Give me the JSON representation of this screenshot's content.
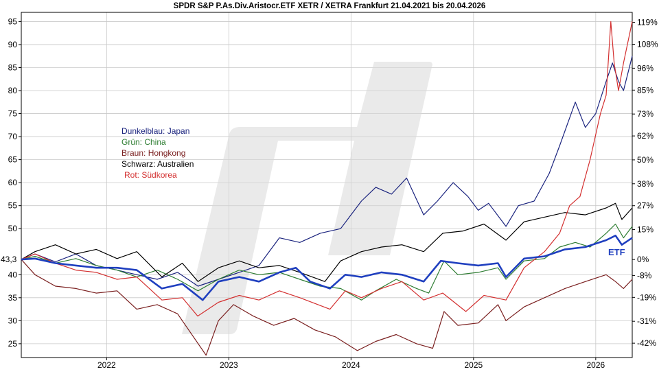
{
  "chart_data": {
    "type": "line",
    "title": "SPDR S&P P.As.Div.Aristocr.ETF XETR / XETRA Frankfurt 21.04.2021 bis 20.04.2026",
    "x_start": "2021-04-21",
    "x_end": "2026-04-20",
    "x_tick_labels": [
      "2022",
      "2023",
      "2024",
      "2025",
      "2026"
    ],
    "y_left_ticks": [
      25,
      30,
      35,
      40,
      50,
      55,
      60,
      65,
      70,
      75,
      80,
      85,
      90,
      95
    ],
    "y_left_base_label": "43,3",
    "y_left_base": 43.3,
    "y_right_ticks": [
      "119%",
      "108%",
      "96%",
      "85%",
      "73%",
      "62%",
      "50%",
      "38%",
      "27%",
      "15%",
      "0%",
      "-8%",
      "-19%",
      "-31%",
      "-42%"
    ],
    "ylim": [
      22,
      97
    ],
    "grid": true,
    "legend": [
      {
        "label": "Dunkelblau: Japan",
        "color": "#1a237e"
      },
      {
        "label": "Grün: China",
        "color": "#2e7d32"
      },
      {
        "label": "Braun: Hongkong",
        "color": "#7a1f1f"
      },
      {
        "label": "Schwarz: Australien",
        "color": "#000000"
      },
      {
        "label": "Rot: Südkorea",
        "color": "#d32f2f"
      }
    ],
    "annotation": {
      "text": "ETF",
      "color": "#1f3fbf"
    },
    "series": [
      {
        "key": "japan",
        "color": "#1a237e",
        "width": 1.2,
        "points": [
          [
            "2021-04-21",
            43.3
          ],
          [
            "2021-06-01",
            44.5
          ],
          [
            "2021-08-01",
            42.8
          ],
          [
            "2021-10-01",
            44.5
          ],
          [
            "2021-12-01",
            42.0
          ],
          [
            "2022-02-01",
            41.0
          ],
          [
            "2022-04-01",
            40.0
          ],
          [
            "2022-06-01",
            39.0
          ],
          [
            "2022-08-01",
            40.5
          ],
          [
            "2022-10-01",
            37.5
          ],
          [
            "2022-12-01",
            39.0
          ],
          [
            "2023-02-01",
            40.5
          ],
          [
            "2023-04-01",
            42.0
          ],
          [
            "2023-06-01",
            48.0
          ],
          [
            "2023-08-01",
            47.0
          ],
          [
            "2023-10-01",
            49.0
          ],
          [
            "2023-12-01",
            50.0
          ],
          [
            "2024-02-01",
            56.0
          ],
          [
            "2024-03-15",
            59.0
          ],
          [
            "2024-05-01",
            57.5
          ],
          [
            "2024-06-15",
            61.0
          ],
          [
            "2024-08-05",
            53.0
          ],
          [
            "2024-09-15",
            56.0
          ],
          [
            "2024-11-01",
            60.0
          ],
          [
            "2024-12-15",
            57.0
          ],
          [
            "2025-01-15",
            54.0
          ],
          [
            "2025-02-15",
            55.5
          ],
          [
            "2025-04-08",
            50.5
          ],
          [
            "2025-05-15",
            55.0
          ],
          [
            "2025-07-01",
            56.0
          ],
          [
            "2025-08-15",
            62.0
          ],
          [
            "2025-09-15",
            68.0
          ],
          [
            "2025-11-01",
            77.5
          ],
          [
            "2025-12-01",
            72.0
          ],
          [
            "2026-01-01",
            75.0
          ],
          [
            "2026-02-01",
            82.0
          ],
          [
            "2026-02-20",
            86.0
          ],
          [
            "2026-03-10",
            82.0
          ],
          [
            "2026-03-25",
            80.0
          ],
          [
            "2026-04-20",
            87.5
          ]
        ]
      },
      {
        "key": "china",
        "color": "#2e7d32",
        "width": 1.2,
        "points": [
          [
            "2021-04-21",
            43.3
          ],
          [
            "2021-06-01",
            44.0
          ],
          [
            "2021-08-01",
            42.5
          ],
          [
            "2021-10-01",
            43.5
          ],
          [
            "2021-12-01",
            42.0
          ],
          [
            "2022-02-01",
            41.0
          ],
          [
            "2022-04-01",
            39.5
          ],
          [
            "2022-06-01",
            41.0
          ],
          [
            "2022-08-01",
            39.0
          ],
          [
            "2022-10-01",
            36.5
          ],
          [
            "2022-12-01",
            39.0
          ],
          [
            "2023-02-01",
            41.0
          ],
          [
            "2023-04-01",
            40.0
          ],
          [
            "2023-06-01",
            40.5
          ],
          [
            "2023-08-01",
            39.0
          ],
          [
            "2023-10-01",
            37.5
          ],
          [
            "2023-12-01",
            37.0
          ],
          [
            "2024-02-01",
            34.5
          ],
          [
            "2024-03-15",
            36.5
          ],
          [
            "2024-05-15",
            39.0
          ],
          [
            "2024-07-15",
            37.0
          ],
          [
            "2024-08-20",
            36.0
          ],
          [
            "2024-10-05",
            43.0
          ],
          [
            "2024-11-15",
            40.0
          ],
          [
            "2025-01-15",
            40.5
          ],
          [
            "2025-03-15",
            41.5
          ],
          [
            "2025-04-08",
            39.0
          ],
          [
            "2025-06-01",
            43.0
          ],
          [
            "2025-08-01",
            43.5
          ],
          [
            "2025-09-15",
            46.0
          ],
          [
            "2025-11-01",
            47.0
          ],
          [
            "2025-12-15",
            46.0
          ],
          [
            "2026-02-01",
            49.0
          ],
          [
            "2026-03-01",
            51.0
          ],
          [
            "2026-03-25",
            48.0
          ],
          [
            "2026-04-20",
            50.5
          ]
        ]
      },
      {
        "key": "hongkong",
        "color": "#7a1f1f",
        "width": 1.2,
        "points": [
          [
            "2021-04-21",
            43.3
          ],
          [
            "2021-06-01",
            40.0
          ],
          [
            "2021-08-01",
            37.5
          ],
          [
            "2021-10-01",
            37.0
          ],
          [
            "2021-12-01",
            36.0
          ],
          [
            "2022-02-01",
            36.5
          ],
          [
            "2022-04-01",
            32.5
          ],
          [
            "2022-06-01",
            33.5
          ],
          [
            "2022-08-01",
            31.5
          ],
          [
            "2022-10-25",
            22.5
          ],
          [
            "2022-12-01",
            30.0
          ],
          [
            "2023-01-15",
            33.5
          ],
          [
            "2023-03-15",
            31.0
          ],
          [
            "2023-05-15",
            29.0
          ],
          [
            "2023-07-15",
            30.5
          ],
          [
            "2023-09-15",
            28.0
          ],
          [
            "2023-11-15",
            26.5
          ],
          [
            "2024-01-20",
            23.5
          ],
          [
            "2024-03-15",
            25.5
          ],
          [
            "2024-05-15",
            27.0
          ],
          [
            "2024-07-15",
            25.0
          ],
          [
            "2024-09-01",
            24.0
          ],
          [
            "2024-10-05",
            32.0
          ],
          [
            "2024-11-15",
            29.0
          ],
          [
            "2025-01-15",
            29.5
          ],
          [
            "2025-03-15",
            33.5
          ],
          [
            "2025-04-08",
            30.0
          ],
          [
            "2025-06-01",
            33.0
          ],
          [
            "2025-08-01",
            35.0
          ],
          [
            "2025-10-01",
            37.0
          ],
          [
            "2025-12-01",
            38.5
          ],
          [
            "2026-02-01",
            40.0
          ],
          [
            "2026-03-01",
            38.5
          ],
          [
            "2026-03-25",
            37.0
          ],
          [
            "2026-04-20",
            39.0
          ]
        ]
      },
      {
        "key": "australien",
        "color": "#000000",
        "width": 1.2,
        "points": [
          [
            "2021-04-21",
            43.3
          ],
          [
            "2021-06-01",
            45.0
          ],
          [
            "2021-08-01",
            46.5
          ],
          [
            "2021-10-01",
            44.5
          ],
          [
            "2021-12-01",
            45.5
          ],
          [
            "2022-02-01",
            43.5
          ],
          [
            "2022-04-01",
            45.0
          ],
          [
            "2022-06-15",
            39.5
          ],
          [
            "2022-08-15",
            42.5
          ],
          [
            "2022-10-01",
            38.5
          ],
          [
            "2022-12-01",
            41.5
          ],
          [
            "2023-02-01",
            43.0
          ],
          [
            "2023-04-01",
            41.5
          ],
          [
            "2023-06-01",
            42.0
          ],
          [
            "2023-08-01",
            40.5
          ],
          [
            "2023-10-15",
            38.5
          ],
          [
            "2023-12-01",
            43.0
          ],
          [
            "2024-02-01",
            45.0
          ],
          [
            "2024-04-01",
            46.0
          ],
          [
            "2024-06-01",
            46.5
          ],
          [
            "2024-08-05",
            45.0
          ],
          [
            "2024-10-01",
            49.0
          ],
          [
            "2024-12-01",
            49.5
          ],
          [
            "2025-02-01",
            51.0
          ],
          [
            "2025-04-08",
            47.5
          ],
          [
            "2025-06-01",
            51.5
          ],
          [
            "2025-08-01",
            52.5
          ],
          [
            "2025-10-01",
            53.5
          ],
          [
            "2025-12-01",
            53.0
          ],
          [
            "2026-02-01",
            54.5
          ],
          [
            "2026-03-01",
            55.5
          ],
          [
            "2026-03-20",
            52.0
          ],
          [
            "2026-04-20",
            54.5
          ]
        ]
      },
      {
        "key": "suedkorea",
        "color": "#d32f2f",
        "width": 1.2,
        "points": [
          [
            "2021-04-21",
            43.3
          ],
          [
            "2021-06-01",
            44.5
          ],
          [
            "2021-08-01",
            42.5
          ],
          [
            "2021-10-01",
            41.0
          ],
          [
            "2021-12-01",
            40.5
          ],
          [
            "2022-02-01",
            39.0
          ],
          [
            "2022-04-01",
            39.5
          ],
          [
            "2022-06-15",
            34.5
          ],
          [
            "2022-08-15",
            35.0
          ],
          [
            "2022-09-30",
            31.0
          ],
          [
            "2022-12-01",
            34.0
          ],
          [
            "2023-02-01",
            35.5
          ],
          [
            "2023-04-01",
            34.5
          ],
          [
            "2023-06-01",
            36.5
          ],
          [
            "2023-08-01",
            35.0
          ],
          [
            "2023-10-30",
            32.5
          ],
          [
            "2023-12-15",
            36.5
          ],
          [
            "2024-02-01",
            35.0
          ],
          [
            "2024-04-01",
            37.0
          ],
          [
            "2024-06-01",
            38.5
          ],
          [
            "2024-08-05",
            34.5
          ],
          [
            "2024-10-01",
            36.0
          ],
          [
            "2024-12-09",
            32.0
          ],
          [
            "2025-02-01",
            35.5
          ],
          [
            "2025-04-08",
            34.5
          ],
          [
            "2025-06-01",
            41.5
          ],
          [
            "2025-08-01",
            45.0
          ],
          [
            "2025-09-15",
            49.0
          ],
          [
            "2025-10-15",
            55.0
          ],
          [
            "2025-11-15",
            57.0
          ],
          [
            "2025-12-15",
            65.0
          ],
          [
            "2026-01-15",
            75.0
          ],
          [
            "2026-02-01",
            79.0
          ],
          [
            "2026-02-15",
            95.0
          ],
          [
            "2026-02-25",
            86.0
          ],
          [
            "2026-03-10",
            80.0
          ],
          [
            "2026-03-25",
            86.0
          ],
          [
            "2026-04-20",
            95.0
          ]
        ]
      },
      {
        "key": "etf",
        "color": "#1f3fbf",
        "width": 2.6,
        "points": [
          [
            "2021-04-21",
            43.3
          ],
          [
            "2021-06-01",
            43.5
          ],
          [
            "2021-08-01",
            42.5
          ],
          [
            "2021-10-01",
            42.0
          ],
          [
            "2021-12-01",
            41.5
          ],
          [
            "2022-02-01",
            41.5
          ],
          [
            "2022-04-01",
            41.0
          ],
          [
            "2022-06-15",
            37.0
          ],
          [
            "2022-08-15",
            38.0
          ],
          [
            "2022-10-15",
            34.5
          ],
          [
            "2022-12-01",
            38.5
          ],
          [
            "2023-02-01",
            39.5
          ],
          [
            "2023-04-01",
            38.5
          ],
          [
            "2023-06-01",
            40.5
          ],
          [
            "2023-07-20",
            41.5
          ],
          [
            "2023-09-01",
            38.5
          ],
          [
            "2023-10-30",
            37.0
          ],
          [
            "2023-12-15",
            40.0
          ],
          [
            "2024-02-01",
            39.5
          ],
          [
            "2024-04-01",
            40.5
          ],
          [
            "2024-06-01",
            40.0
          ],
          [
            "2024-08-05",
            38.5
          ],
          [
            "2024-09-25",
            43.0
          ],
          [
            "2024-11-15",
            42.5
          ],
          [
            "2025-01-15",
            42.0
          ],
          [
            "2025-03-15",
            42.5
          ],
          [
            "2025-04-08",
            39.5
          ],
          [
            "2025-06-01",
            43.5
          ],
          [
            "2025-08-01",
            44.0
          ],
          [
            "2025-10-01",
            45.5
          ],
          [
            "2025-12-01",
            46.0
          ],
          [
            "2026-02-01",
            47.5
          ],
          [
            "2026-03-01",
            48.5
          ],
          [
            "2026-03-20",
            46.5
          ],
          [
            "2026-04-20",
            48.0
          ]
        ]
      }
    ]
  }
}
